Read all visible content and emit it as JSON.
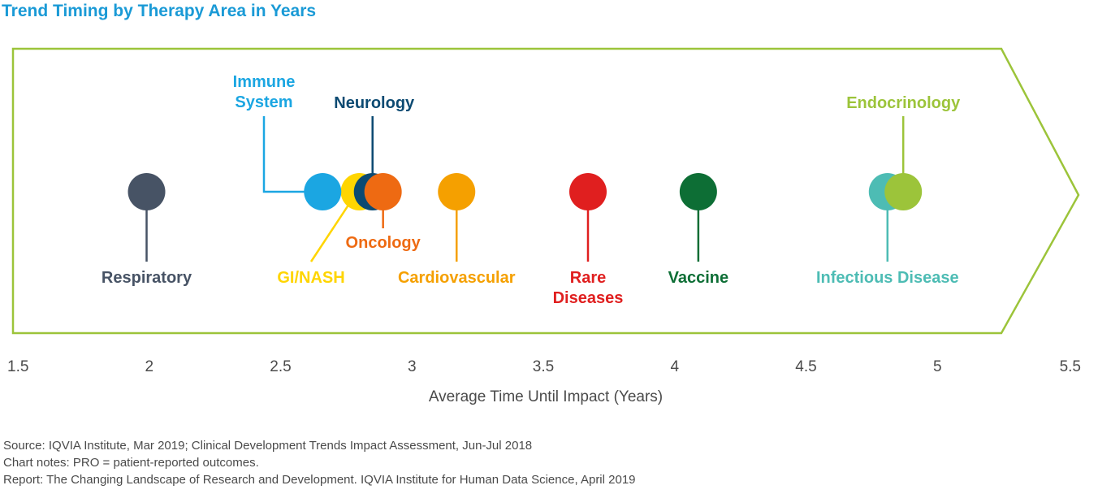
{
  "title": "Trend Timing by Therapy Area in Years",
  "chart_data": {
    "type": "scatter",
    "title": "Trend Timing by Therapy Area in Years",
    "xlabel": "Average Time Until Impact (Years)",
    "ylabel": "",
    "xlim": [
      1.5,
      5.5
    ],
    "x_ticks": [
      "1.5",
      "2",
      "2.5",
      "3",
      "3.5",
      "4",
      "4.5",
      "5",
      "5.5"
    ],
    "grid": false,
    "points": [
      {
        "name": "Respiratory",
        "x": 1.99,
        "color": "#475365",
        "label_lines": [
          "Respiratory"
        ],
        "callout": "below"
      },
      {
        "name": "Immune System",
        "x": 2.66,
        "color": "#1ba6e2",
        "label_lines": [
          "Immune",
          "System"
        ],
        "callout": "left-up"
      },
      {
        "name": "GI/NASH",
        "x": 2.8,
        "color": "#ffd500",
        "label_lines": [
          "GI/NASH"
        ],
        "callout": "below-left"
      },
      {
        "name": "Neurology",
        "x": 2.85,
        "color": "#0c4a72",
        "label_lines": [
          "Neurology"
        ],
        "callout": "above"
      },
      {
        "name": "Oncology",
        "x": 2.89,
        "color": "#ee6a12",
        "label_lines": [
          "Oncology"
        ],
        "callout": "below-short"
      },
      {
        "name": "Cardiovascular",
        "x": 3.17,
        "color": "#f5a000",
        "label_lines": [
          "Cardiovascular"
        ],
        "callout": "below"
      },
      {
        "name": "Rare Diseases",
        "x": 3.67,
        "color": "#e01f1f",
        "label_lines": [
          "Rare",
          "Diseases"
        ],
        "callout": "below"
      },
      {
        "name": "Vaccine",
        "x": 4.09,
        "color": "#0d6e35",
        "label_lines": [
          "Vaccine"
        ],
        "callout": "below"
      },
      {
        "name": "Infectious Disease",
        "x": 4.81,
        "color": "#4dbcb4",
        "label_lines": [
          "Infectious Disease"
        ],
        "callout": "below"
      },
      {
        "name": "Endocrinology",
        "x": 4.87,
        "color": "#9cc43a",
        "label_lines": [
          "Endocrinology"
        ],
        "callout": "above"
      }
    ]
  },
  "notes": {
    "source": "Source: IQVIA Institute, Mar 2019; Clinical Development Trends Impact Assessment, Jun-Jul 2018",
    "chart_notes": "Chart notes: PRO = patient-reported outcomes.",
    "report": "Report: The Changing Landscape of Research and Development. IQVIA Institute for Human Data Science, April 2019"
  },
  "colors": {
    "title": "#1a9ad6",
    "arrow_outline": "#9cc43a",
    "axis_text": "#4a4a4a"
  }
}
